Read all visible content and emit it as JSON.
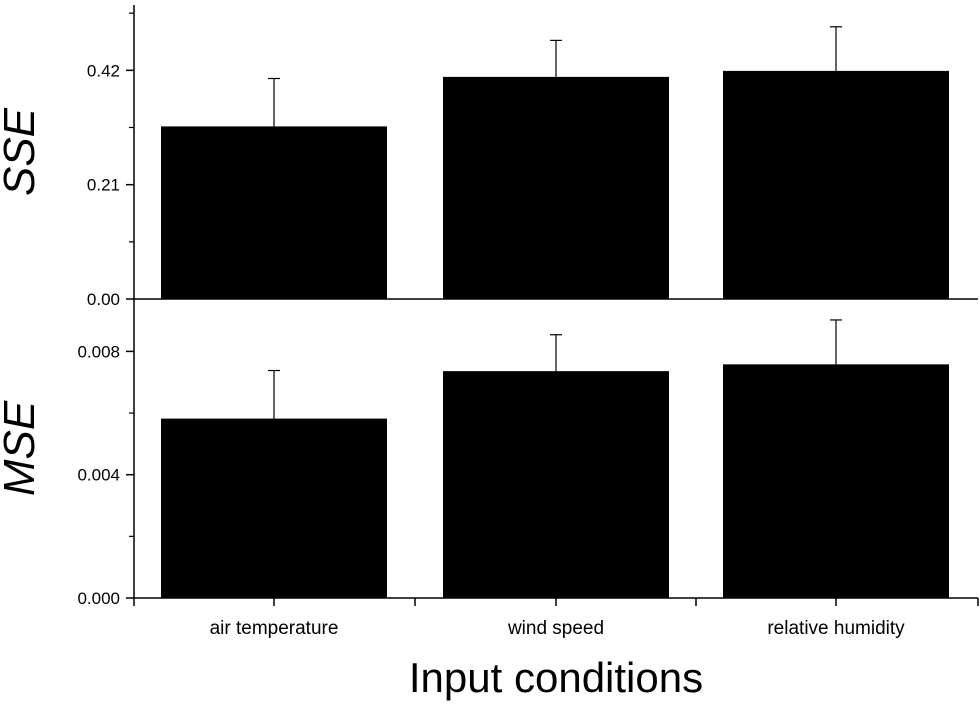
{
  "chart_data": [
    {
      "type": "bar",
      "categories": [
        "air temperature",
        "wind speed",
        "relative humidity"
      ],
      "values": [
        0.317,
        0.408,
        0.419
      ],
      "error_plus": [
        0.088,
        0.067,
        0.081
      ],
      "ylabel": "SSE",
      "ylim": [
        0,
        0.54
      ],
      "yticks": [
        "0.00",
        "0.21",
        "0.42"
      ],
      "ytick_values": [
        0,
        0.21,
        0.42
      ],
      "bar_color": "#000000",
      "grid": false
    },
    {
      "type": "bar",
      "categories": [
        "air temperature",
        "wind speed",
        "relative humidity"
      ],
      "values": [
        0.00582,
        0.00736,
        0.00758
      ],
      "error_plus": [
        0.00156,
        0.00118,
        0.00144
      ],
      "ylabel": "MSE",
      "ylim": [
        0,
        0.0097
      ],
      "yticks": [
        "0.000",
        "0.004",
        "0.008"
      ],
      "ytick_values": [
        0,
        0.004,
        0.008
      ],
      "bar_color": "#000000",
      "grid": false
    }
  ],
  "xlabel": "Input conditions"
}
